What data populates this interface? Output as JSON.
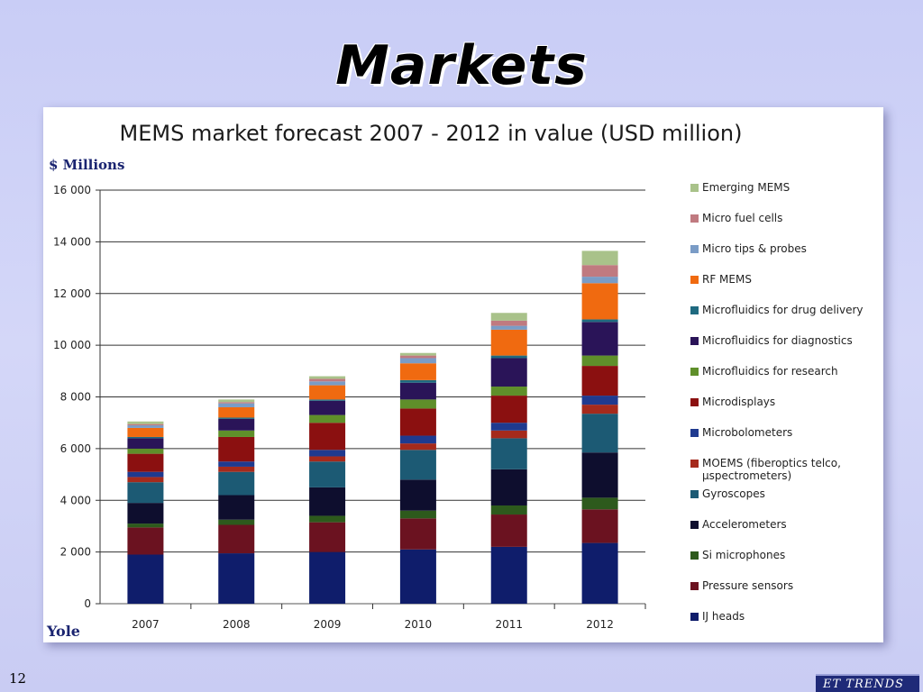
{
  "slide": {
    "title": "Markets",
    "page_number": "12",
    "logo_text": "ET TRENDS"
  },
  "chart_data": {
    "type": "bar",
    "stacked": true,
    "title": "MEMS market forecast 2007 - 2012 in value (USD million)",
    "ylabel": "$ Millions",
    "source": "Yole",
    "xlabel": "",
    "ylim": [
      0,
      16000
    ],
    "yticks": [
      0,
      2000,
      4000,
      6000,
      8000,
      10000,
      12000,
      14000,
      16000
    ],
    "ytick_labels": [
      "0",
      "2 000",
      "4 000",
      "6 000",
      "8 000",
      "10 000",
      "12 000",
      "14 000",
      "16 000"
    ],
    "grid": true,
    "legend_position": "right",
    "categories": [
      "2007",
      "2008",
      "2009",
      "2010",
      "2011",
      "2012"
    ],
    "series": [
      {
        "name": "IJ heads",
        "color": "#0f1d6b",
        "values": [
          1900,
          1950,
          2000,
          2100,
          2200,
          2350
        ]
      },
      {
        "name": "Pressure sensors",
        "color": "#6b1220",
        "values": [
          1050,
          1100,
          1150,
          1200,
          1250,
          1300
        ]
      },
      {
        "name": "Si microphones",
        "color": "#2d5a1c",
        "values": [
          150,
          200,
          250,
          300,
          350,
          450
        ]
      },
      {
        "name": "Accelerometers",
        "color": "#0e0e2e",
        "values": [
          800,
          950,
          1100,
          1200,
          1400,
          1750
        ]
      },
      {
        "name": "Gyroscopes",
        "color": "#1c5a74",
        "values": [
          800,
          900,
          1000,
          1150,
          1200,
          1500
        ]
      },
      {
        "name": "MOEMS (fiberoptics telco, µspectrometers)",
        "color": "#a52a1c",
        "values": [
          200,
          200,
          200,
          250,
          300,
          350
        ]
      },
      {
        "name": "Microbolometers",
        "color": "#1f3a8f",
        "values": [
          200,
          200,
          250,
          300,
          300,
          350
        ]
      },
      {
        "name": "Microdisplays",
        "color": "#8b1010",
        "values": [
          700,
          950,
          1050,
          1050,
          1050,
          1150
        ]
      },
      {
        "name": "Microfluidics for research",
        "color": "#5f8f2a",
        "values": [
          200,
          250,
          300,
          350,
          350,
          400
        ]
      },
      {
        "name": "Microfluidics for diagnostics",
        "color": "#2a1458",
        "values": [
          400,
          450,
          550,
          650,
          1100,
          1300
        ]
      },
      {
        "name": "Microfluidics for drug delivery",
        "color": "#1f6a80",
        "values": [
          50,
          50,
          50,
          100,
          100,
          100
        ]
      },
      {
        "name": "RF MEMS",
        "color": "#f06a10",
        "values": [
          350,
          400,
          550,
          650,
          1000,
          1400
        ]
      },
      {
        "name": "Micro tips & probes",
        "color": "#7a9cc6",
        "values": [
          100,
          150,
          150,
          200,
          150,
          250
        ]
      },
      {
        "name": "Micro fuel cells",
        "color": "#c07a80",
        "values": [
          50,
          50,
          100,
          100,
          200,
          450
        ]
      },
      {
        "name": "Emerging MEMS",
        "color": "#a9c28a",
        "values": [
          100,
          100,
          100,
          100,
          300,
          550
        ]
      }
    ]
  }
}
